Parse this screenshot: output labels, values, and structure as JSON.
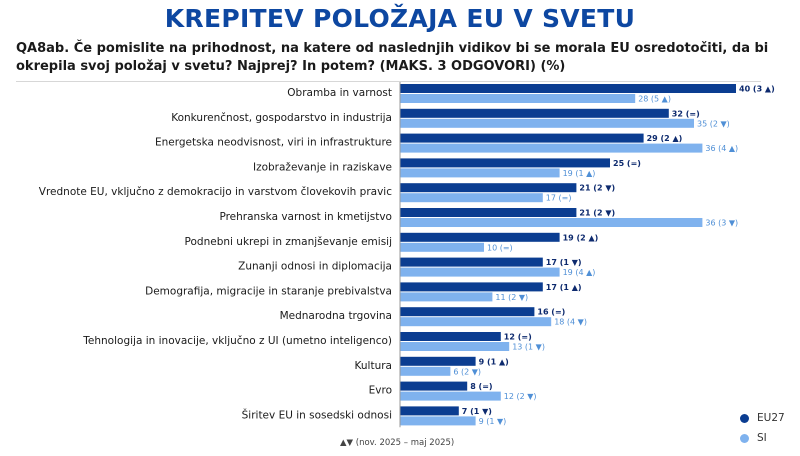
{
  "header": {
    "title": "KREPITEV POLOŽAJA EU V SVETU",
    "question": "QA8ab. Če pomislite na prihodnost, na katere od naslednjih vidikov bi se morala EU osredotočiti, da bi okrepila svoj položaj v svetu? Najprej? In potem? (MAKS. 3 ODGOVORI) (%)"
  },
  "legend": {
    "eu27": {
      "label": "EU27",
      "color": "#0b3d91"
    },
    "si": {
      "label": "SI",
      "color": "#7fb2ee"
    }
  },
  "footnote": "▲▼ (nov. 2025 – maj 2025)",
  "chart_data": {
    "type": "bar",
    "orientation": "horizontal",
    "categories": [
      "Obramba in varnost",
      "Konkurenčnost, gospodarstvo in industrija",
      "Energetska neodvisnost, viri in infrastrukture",
      "Izobraževanje in raziskave",
      "Vrednote EU, vključno z demokracijo in varstvom človekovih pravic",
      "Prehranska varnost in kmetijstvo",
      "Podnebni ukrepi in zmanjševanje emisij",
      "Zunanji odnosi in diplomacija",
      "Demografija, migracije in staranje prebivalstva",
      "Mednarodna trgovina",
      "Tehnologija in inovacije, vključno z UI (umetno inteligenco)",
      "Kultura",
      "Evro",
      "Širitev EU in sosedski odnosi"
    ],
    "series": [
      {
        "name": "EU27",
        "color": "#0b3d91",
        "values": [
          40,
          32,
          29,
          25,
          21,
          21,
          19,
          17,
          17,
          16,
          12,
          9,
          8,
          7
        ],
        "labels": [
          "40 (3 ▲)",
          "32 (=)",
          "29 (2 ▲)",
          "25 (=)",
          "21 (2 ▼)",
          "21 (2 ▼)",
          "19 (2 ▲)",
          "17 (1 ▼)",
          "17 (1 ▲)",
          "16 (=)",
          "12 (=)",
          "9 (1 ▲)",
          "8 (=)",
          "7 (1 ▼)"
        ]
      },
      {
        "name": "SI",
        "color": "#7fb2ee",
        "values": [
          28,
          35,
          36,
          19,
          17,
          36,
          10,
          19,
          11,
          18,
          13,
          6,
          12,
          9
        ],
        "labels": [
          "28 (5 ▲)",
          "35 (2 ▼)",
          "36 (4 ▲)",
          "19 (1 ▲)",
          "17 (=)",
          "36 (3 ▼)",
          "10 (=)",
          "19 (4 ▲)",
          "11 (2 ▼)",
          "18 (4 ▼)",
          "13 (1 ▼)",
          "6 (2 ▼)",
          "12 (2 ▼)",
          "9 (1 ▼)"
        ]
      }
    ],
    "xlim": [
      0,
      40
    ],
    "grid": false,
    "legend_position": "bottom-right"
  }
}
